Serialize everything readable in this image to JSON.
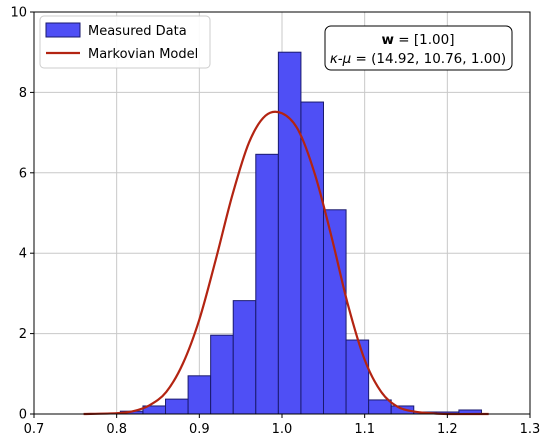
{
  "chart_data": {
    "type": "bar",
    "xlim": [
      0.7,
      1.3
    ],
    "ylim": [
      0,
      10
    ],
    "x_ticks": [
      0.7,
      0.8,
      0.9,
      1.0,
      1.1,
      1.2,
      1.3
    ],
    "x_tick_labels": [
      "0.7",
      "0.8",
      "0.9",
      "1.0",
      "1.1",
      "1.2",
      "1.3"
    ],
    "y_ticks": [
      0,
      2,
      4,
      6,
      8,
      10
    ],
    "y_tick_labels": [
      "0",
      "2",
      "4",
      "6",
      "8",
      "10"
    ],
    "grid": true,
    "legend_position": "top-left",
    "colors": {
      "bars": "#4f4ff5",
      "bar_edge": "#1a1a6e",
      "curve": "#b32412"
    },
    "series": [
      {
        "name": "Measured Data",
        "type": "histogram",
        "bin_edges": [
          0.8045,
          0.8318,
          0.8591,
          0.8864,
          0.9137,
          0.941,
          0.9683,
          0.9956,
          1.0229,
          1.0502,
          1.0775,
          1.1048,
          1.1321,
          1.1594,
          1.1867,
          1.214,
          1.2413
        ],
        "values": [
          0.07,
          0.2,
          0.37,
          0.95,
          1.96,
          2.82,
          6.46,
          9.0,
          7.76,
          5.08,
          1.84,
          0.35,
          0.2,
          0.05,
          0.05,
          0.1
        ]
      },
      {
        "name": "Markovian Model",
        "type": "line",
        "x": [
          0.76,
          0.8,
          0.82,
          0.84,
          0.86,
          0.88,
          0.9,
          0.92,
          0.94,
          0.96,
          0.98,
          1.0,
          1.02,
          1.04,
          1.06,
          1.08,
          1.1,
          1.12,
          1.14,
          1.16,
          1.18,
          1.2,
          1.25
        ],
        "y": [
          0.0,
          0.02,
          0.07,
          0.22,
          0.55,
          1.25,
          2.35,
          3.85,
          5.45,
          6.75,
          7.42,
          7.48,
          7.05,
          5.95,
          4.4,
          2.7,
          1.35,
          0.55,
          0.18,
          0.06,
          0.02,
          0.0,
          0.0
        ]
      }
    ],
    "legend_labels": [
      "Measured Data",
      "Markovian Model"
    ],
    "annotation": {
      "line1_bold": "w",
      "line1_rest": " = [1.00]",
      "line2_symbol": "κ-μ",
      "line2_rest": " = (14.92, 10.76, 1.00)"
    }
  }
}
